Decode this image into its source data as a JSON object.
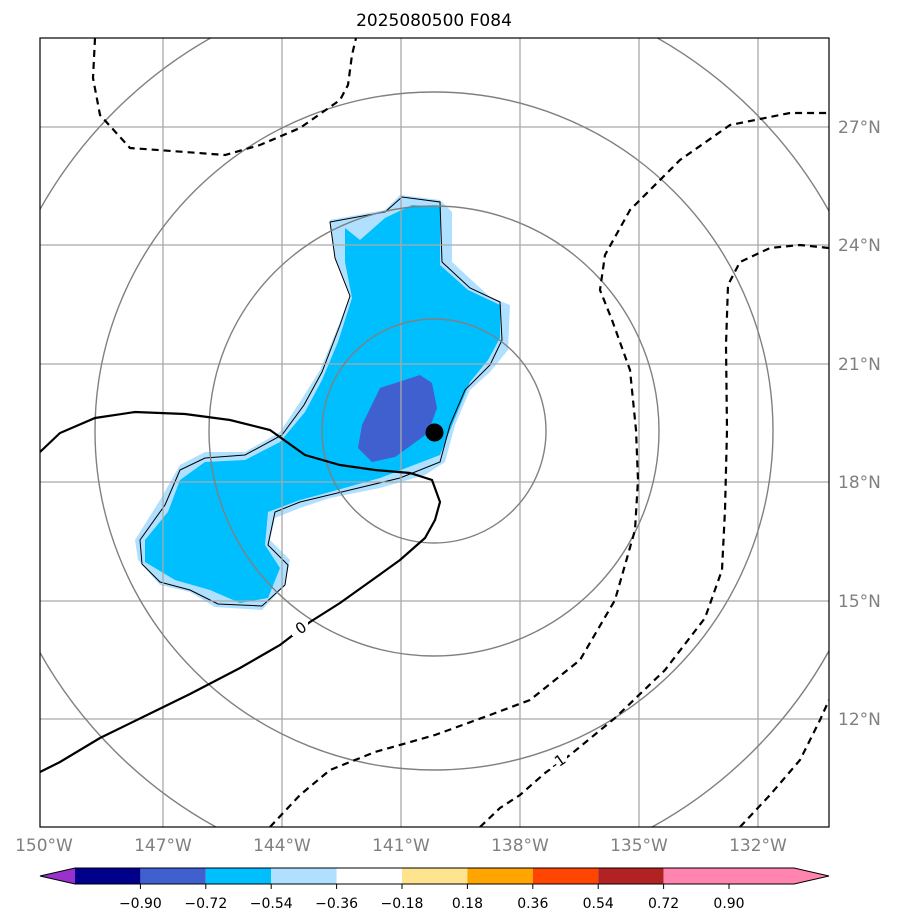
{
  "chart_data": {
    "type": "heatmap",
    "title": "2025080500 F084",
    "x_ticks": [
      "150°W",
      "147°W",
      "144°W",
      "141°W",
      "138°W",
      "135°W",
      "132°W"
    ],
    "y_ticks": [
      "27°N",
      "24°N",
      "21°N",
      "18°N",
      "15°N",
      "12°N"
    ],
    "xlim": [
      -150,
      -130
    ],
    "ylim": [
      9.3,
      29.3
    ],
    "center_marker": {
      "lon": -140.0,
      "lat": 19.3
    },
    "range_rings": 4,
    "contour_lines": [
      {
        "level": "0",
        "style": "solid"
      },
      {
        "level": "-1",
        "style": "dashed"
      }
    ],
    "colorbar": {
      "ticks": [
        "−0.90",
        "−0.72",
        "−0.54",
        "−0.36",
        "−0.18",
        "0.18",
        "0.36",
        "0.54",
        "0.72",
        "0.90"
      ],
      "colors": [
        "#9932CC",
        "#00008B",
        "#4060D0",
        "#00BFFF",
        "#B0E0FF",
        "#FFFFFF",
        "#FFE48F",
        "#FFA500",
        "#FF4500",
        "#B22222",
        "#FF85B0"
      ]
    }
  }
}
